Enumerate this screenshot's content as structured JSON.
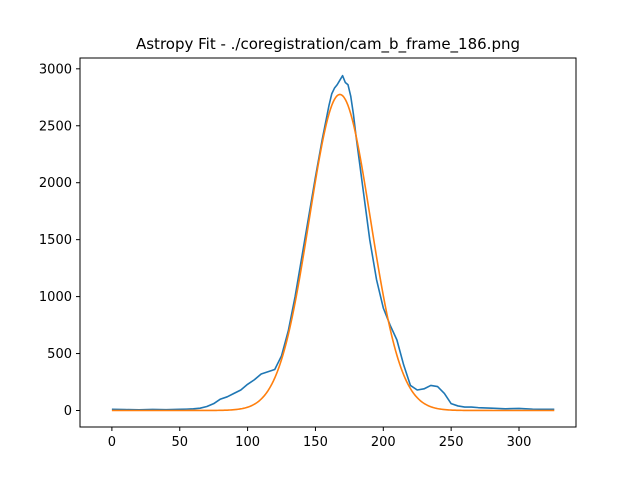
{
  "chart_data": {
    "type": "line",
    "title": "Astropy Fit - ./coregistration/cam_b_frame_186.png",
    "xlabel": "",
    "ylabel": "",
    "xlim": [
      -23.5,
      342
    ],
    "ylim": [
      -145,
      3095
    ],
    "xticks": [
      0,
      50,
      100,
      150,
      200,
      250,
      300
    ],
    "yticks": [
      0,
      500,
      1000,
      1500,
      2000,
      2500,
      3000
    ],
    "xtick_labels": [
      "0",
      "50",
      "100",
      "150",
      "200",
      "250",
      "300"
    ],
    "ytick_labels": [
      "0",
      "500",
      "1000",
      "1500",
      "2000",
      "2500",
      "3000"
    ],
    "grid": false,
    "legend": "none",
    "series": [
      {
        "color": "#1f77b4",
        "x": [
          0,
          10,
          20,
          30,
          40,
          50,
          55,
          60,
          65,
          70,
          75,
          80,
          85,
          90,
          95,
          100,
          105,
          110,
          115,
          120,
          125,
          130,
          135,
          140,
          145,
          150,
          155,
          160,
          162,
          164,
          166,
          168,
          170,
          172,
          174,
          176,
          178,
          180,
          185,
          190,
          195,
          200,
          205,
          210,
          215,
          220,
          225,
          230,
          235,
          240,
          245,
          250,
          255,
          260,
          265,
          270,
          280,
          290,
          300,
          310,
          320,
          326
        ],
        "y": [
          10,
          8,
          6,
          9,
          7,
          10,
          12,
          15,
          20,
          35,
          60,
          100,
          120,
          150,
          180,
          230,
          270,
          320,
          340,
          360,
          480,
          700,
          1000,
          1350,
          1700,
          2050,
          2380,
          2680,
          2780,
          2830,
          2860,
          2900,
          2940,
          2880,
          2860,
          2760,
          2600,
          2400,
          1950,
          1500,
          1150,
          900,
          750,
          620,
          400,
          220,
          180,
          190,
          220,
          210,
          150,
          60,
          40,
          30,
          30,
          25,
          20,
          15,
          18,
          12,
          10,
          10
        ]
      },
      {
        "color": "#ff7f0e",
        "model": "gaussian",
        "amplitude": 2775,
        "mean": 168,
        "stddev": 22.5,
        "xrange": [
          0,
          326
        ]
      }
    ]
  }
}
